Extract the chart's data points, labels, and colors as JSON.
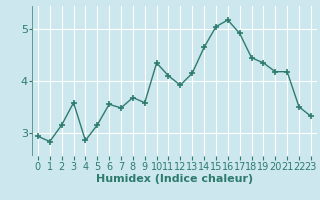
{
  "x": [
    0,
    1,
    2,
    3,
    4,
    5,
    6,
    7,
    8,
    9,
    10,
    11,
    12,
    13,
    14,
    15,
    16,
    17,
    18,
    19,
    20,
    21,
    22,
    23
  ],
  "y": [
    2.93,
    2.83,
    3.15,
    3.58,
    2.85,
    3.15,
    3.55,
    3.48,
    3.68,
    3.58,
    4.35,
    4.1,
    3.92,
    4.15,
    4.65,
    5.05,
    5.18,
    4.92,
    4.45,
    4.35,
    4.18,
    4.18,
    3.5,
    3.32
  ],
  "line_color": "#2e7b6e",
  "bg_color": "#cce8ee",
  "grid_color": "#ffffff",
  "grid_color_minor": "#daeef3",
  "xlabel": "Humidex (Indice chaleur)",
  "xlim": [
    -0.5,
    23.5
  ],
  "ylim": [
    2.55,
    5.45
  ],
  "yticks": [
    3,
    4,
    5
  ],
  "xtick_labels": [
    "0",
    "1",
    "2",
    "3",
    "4",
    "5",
    "6",
    "7",
    "8",
    "9",
    "10",
    "11",
    "12",
    "13",
    "14",
    "15",
    "16",
    "17",
    "18",
    "19",
    "20",
    "21",
    "22",
    "23"
  ],
  "marker": "+",
  "markersize": 4,
  "markeredgewidth": 1.2,
  "linewidth": 1.0,
  "xlabel_fontsize": 8,
  "tick_fontsize": 7
}
